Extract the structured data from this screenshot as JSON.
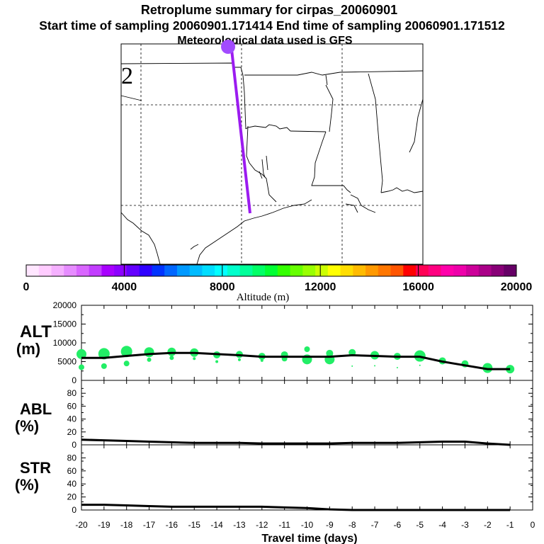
{
  "header": {
    "title": "Retroplume summary for cirpas_20060901",
    "sampling": "Start time of sampling 20060901.171414     End time of sampling 20060901.171512",
    "met": "Meteorological data used is GFS"
  },
  "map": {
    "plume_color": "#9b1bf0",
    "source_marker_color": "#a24bff",
    "label_mark": "2"
  },
  "colorbar": {
    "label": "Altitude (m)",
    "tick_labels": [
      "0",
      "4000",
      "8000",
      "12000",
      "16000",
      "20000"
    ],
    "colors": [
      "#ffe6ff",
      "#ffccff",
      "#f5b0ff",
      "#e68cff",
      "#d966ff",
      "#c23dff",
      "#a800ff",
      "#8c00ff",
      "#6400ff",
      "#2f00ff",
      "#0033ff",
      "#0066ff",
      "#0099ff",
      "#00bbff",
      "#00ddff",
      "#00ffff",
      "#00ffcc",
      "#00ff99",
      "#00ff66",
      "#00ff33",
      "#33ff00",
      "#66ff00",
      "#99ff00",
      "#ccff00",
      "#ffff00",
      "#ffdd00",
      "#ffbb00",
      "#ff9900",
      "#ff7700",
      "#ff5500",
      "#ff0000",
      "#ff0055",
      "#ff0080",
      "#ff00aa",
      "#ee00aa",
      "#cc0099",
      "#aa0088",
      "#880077",
      "#660066"
    ]
  },
  "panels": {
    "alt_label": [
      "ALT",
      "(m)"
    ],
    "abl_label": [
      "ABL",
      "(%)"
    ],
    "str_label": [
      "STR",
      "(%)"
    ],
    "xlabel": "Travel time (days)"
  },
  "chart_data": {
    "type": "line",
    "x": [
      -20,
      -19,
      -18,
      -17,
      -16,
      -15,
      -14,
      -13,
      -12,
      -11,
      -10,
      -9,
      -8,
      -7,
      -6,
      -5,
      -4,
      -3,
      -2,
      -1
    ],
    "x_tick_labels": [
      "-20",
      "-19",
      "-18",
      "-17",
      "-16",
      "-15",
      "-14",
      "-13",
      "-12",
      "-11",
      "-10",
      "-9",
      "-8",
      "-7",
      "-6",
      "-5",
      "-4",
      "-3",
      "-2",
      "-1",
      "0"
    ],
    "xlabel": "Travel time (days)",
    "xlim": [
      -20,
      0
    ],
    "alt": {
      "ylabel": "ALT (m)",
      "ylim": [
        0,
        20000
      ],
      "yticks": [
        "20000",
        "15000",
        "10000",
        "5000",
        "0"
      ],
      "mean": [
        6000,
        6000,
        6500,
        7000,
        7300,
        7300,
        7000,
        6700,
        6300,
        6300,
        6300,
        6300,
        6700,
        6500,
        6300,
        6300,
        5000,
        4000,
        3000,
        3000
      ],
      "blobs": [
        {
          "x": -20,
          "y": 7000,
          "s": 7
        },
        {
          "x": -20,
          "y": 3500,
          "s": 4
        },
        {
          "x": -19,
          "y": 7100,
          "s": 8
        },
        {
          "x": -19,
          "y": 3800,
          "s": 4
        },
        {
          "x": -18,
          "y": 7700,
          "s": 8
        },
        {
          "x": -18,
          "y": 4500,
          "s": 4
        },
        {
          "x": -17,
          "y": 7500,
          "s": 7
        },
        {
          "x": -17,
          "y": 5500,
          "s": 3
        },
        {
          "x": -16,
          "y": 7600,
          "s": 6
        },
        {
          "x": -16,
          "y": 6000,
          "s": 3
        },
        {
          "x": -15,
          "y": 7400,
          "s": 6
        },
        {
          "x": -15,
          "y": 5800,
          "s": 2
        },
        {
          "x": -14,
          "y": 6800,
          "s": 5
        },
        {
          "x": -14,
          "y": 5000,
          "s": 2
        },
        {
          "x": -13,
          "y": 6900,
          "s": 5
        },
        {
          "x": -13,
          "y": 5500,
          "s": 2
        },
        {
          "x": -12,
          "y": 6400,
          "s": 5
        },
        {
          "x": -12,
          "y": 5300,
          "s": 2
        },
        {
          "x": -11,
          "y": 6800,
          "s": 5
        },
        {
          "x": -11,
          "y": 5800,
          "s": 4
        },
        {
          "x": -10,
          "y": 8300,
          "s": 4
        },
        {
          "x": -10,
          "y": 5600,
          "s": 7
        },
        {
          "x": -9,
          "y": 7200,
          "s": 5
        },
        {
          "x": -9,
          "y": 5600,
          "s": 7
        },
        {
          "x": -8,
          "y": 7400,
          "s": 5
        },
        {
          "x": -8,
          "y": 3800,
          "s": 1
        },
        {
          "x": -7,
          "y": 6700,
          "s": 6
        },
        {
          "x": -7,
          "y": 3900,
          "s": 1
        },
        {
          "x": -6,
          "y": 6400,
          "s": 5
        },
        {
          "x": -6,
          "y": 3400,
          "s": 1
        },
        {
          "x": -5,
          "y": 6500,
          "s": 8
        },
        {
          "x": -5,
          "y": 4000,
          "s": 1
        },
        {
          "x": -4,
          "y": 5200,
          "s": 5
        },
        {
          "x": -3,
          "y": 4400,
          "s": 5
        },
        {
          "x": -2,
          "y": 3300,
          "s": 7
        },
        {
          "x": -1,
          "y": 3000,
          "s": 6
        }
      ]
    },
    "abl": {
      "ylabel": "ABL (%)",
      "ylim": [
        0,
        100
      ],
      "yticks": [
        "80",
        "60",
        "40",
        "20",
        "0"
      ],
      "values": [
        8,
        7,
        6,
        5,
        4,
        3,
        3,
        3,
        2,
        2,
        2,
        2,
        3,
        3,
        3,
        4,
        5,
        5,
        2,
        0
      ]
    },
    "str": {
      "ylabel": "STR (%)",
      "ylim": [
        0,
        100
      ],
      "yticks": [
        "80",
        "60",
        "40",
        "20",
        "0"
      ],
      "values": [
        8,
        8,
        7,
        6,
        5,
        5,
        5,
        5,
        5,
        4,
        3,
        1,
        0,
        0,
        0,
        0,
        0,
        0,
        0,
        0
      ]
    }
  }
}
